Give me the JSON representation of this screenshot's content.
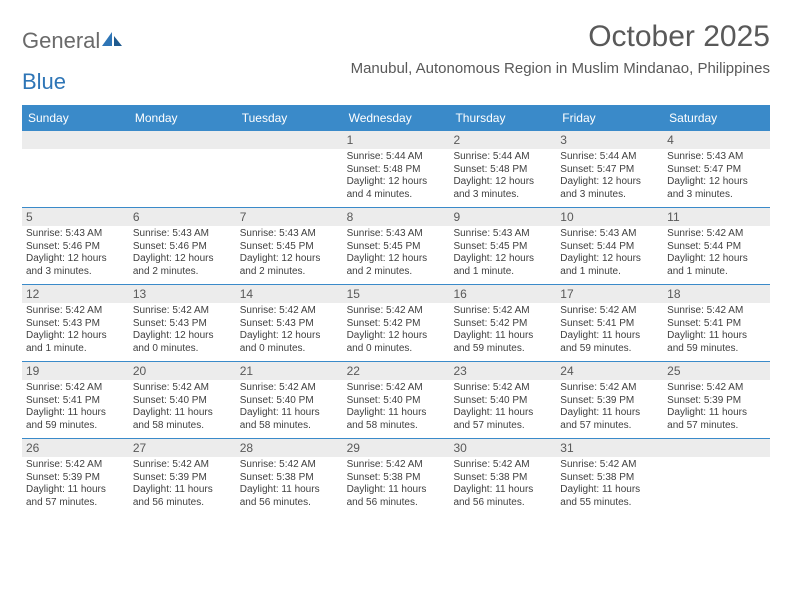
{
  "brand": {
    "part1": "General",
    "part2": "Blue"
  },
  "title": "October 2025",
  "location": "Manubul, Autonomous Region in Muslim Mindanao, Philippines",
  "colors": {
    "header_bg": "#3a8ac9",
    "header_text": "#ffffff",
    "daynum_bg": "#ececec",
    "text_muted": "#595959",
    "body_text": "#404040",
    "week_border": "#3a8ac9",
    "brand_gray": "#6a6a6a",
    "brand_blue": "#2e75b6",
    "page_bg": "#ffffff"
  },
  "typography": {
    "title_fontsize": 30,
    "location_fontsize": 15,
    "dayhead_fontsize": 12,
    "daynum_fontsize": 12,
    "body_fontsize": 10,
    "font_family": "Arial"
  },
  "day_headers": [
    "Sunday",
    "Monday",
    "Tuesday",
    "Wednesday",
    "Thursday",
    "Friday",
    "Saturday"
  ],
  "weeks": [
    [
      {
        "n": "",
        "sr": "",
        "ss": "",
        "dl1": "",
        "dl2": ""
      },
      {
        "n": "",
        "sr": "",
        "ss": "",
        "dl1": "",
        "dl2": ""
      },
      {
        "n": "",
        "sr": "",
        "ss": "",
        "dl1": "",
        "dl2": ""
      },
      {
        "n": "1",
        "sr": "Sunrise: 5:44 AM",
        "ss": "Sunset: 5:48 PM",
        "dl1": "Daylight: 12 hours",
        "dl2": "and 4 minutes."
      },
      {
        "n": "2",
        "sr": "Sunrise: 5:44 AM",
        "ss": "Sunset: 5:48 PM",
        "dl1": "Daylight: 12 hours",
        "dl2": "and 3 minutes."
      },
      {
        "n": "3",
        "sr": "Sunrise: 5:44 AM",
        "ss": "Sunset: 5:47 PM",
        "dl1": "Daylight: 12 hours",
        "dl2": "and 3 minutes."
      },
      {
        "n": "4",
        "sr": "Sunrise: 5:43 AM",
        "ss": "Sunset: 5:47 PM",
        "dl1": "Daylight: 12 hours",
        "dl2": "and 3 minutes."
      }
    ],
    [
      {
        "n": "5",
        "sr": "Sunrise: 5:43 AM",
        "ss": "Sunset: 5:46 PM",
        "dl1": "Daylight: 12 hours",
        "dl2": "and 3 minutes."
      },
      {
        "n": "6",
        "sr": "Sunrise: 5:43 AM",
        "ss": "Sunset: 5:46 PM",
        "dl1": "Daylight: 12 hours",
        "dl2": "and 2 minutes."
      },
      {
        "n": "7",
        "sr": "Sunrise: 5:43 AM",
        "ss": "Sunset: 5:45 PM",
        "dl1": "Daylight: 12 hours",
        "dl2": "and 2 minutes."
      },
      {
        "n": "8",
        "sr": "Sunrise: 5:43 AM",
        "ss": "Sunset: 5:45 PM",
        "dl1": "Daylight: 12 hours",
        "dl2": "and 2 minutes."
      },
      {
        "n": "9",
        "sr": "Sunrise: 5:43 AM",
        "ss": "Sunset: 5:45 PM",
        "dl1": "Daylight: 12 hours",
        "dl2": "and 1 minute."
      },
      {
        "n": "10",
        "sr": "Sunrise: 5:43 AM",
        "ss": "Sunset: 5:44 PM",
        "dl1": "Daylight: 12 hours",
        "dl2": "and 1 minute."
      },
      {
        "n": "11",
        "sr": "Sunrise: 5:42 AM",
        "ss": "Sunset: 5:44 PM",
        "dl1": "Daylight: 12 hours",
        "dl2": "and 1 minute."
      }
    ],
    [
      {
        "n": "12",
        "sr": "Sunrise: 5:42 AM",
        "ss": "Sunset: 5:43 PM",
        "dl1": "Daylight: 12 hours",
        "dl2": "and 1 minute."
      },
      {
        "n": "13",
        "sr": "Sunrise: 5:42 AM",
        "ss": "Sunset: 5:43 PM",
        "dl1": "Daylight: 12 hours",
        "dl2": "and 0 minutes."
      },
      {
        "n": "14",
        "sr": "Sunrise: 5:42 AM",
        "ss": "Sunset: 5:43 PM",
        "dl1": "Daylight: 12 hours",
        "dl2": "and 0 minutes."
      },
      {
        "n": "15",
        "sr": "Sunrise: 5:42 AM",
        "ss": "Sunset: 5:42 PM",
        "dl1": "Daylight: 12 hours",
        "dl2": "and 0 minutes."
      },
      {
        "n": "16",
        "sr": "Sunrise: 5:42 AM",
        "ss": "Sunset: 5:42 PM",
        "dl1": "Daylight: 11 hours",
        "dl2": "and 59 minutes."
      },
      {
        "n": "17",
        "sr": "Sunrise: 5:42 AM",
        "ss": "Sunset: 5:41 PM",
        "dl1": "Daylight: 11 hours",
        "dl2": "and 59 minutes."
      },
      {
        "n": "18",
        "sr": "Sunrise: 5:42 AM",
        "ss": "Sunset: 5:41 PM",
        "dl1": "Daylight: 11 hours",
        "dl2": "and 59 minutes."
      }
    ],
    [
      {
        "n": "19",
        "sr": "Sunrise: 5:42 AM",
        "ss": "Sunset: 5:41 PM",
        "dl1": "Daylight: 11 hours",
        "dl2": "and 59 minutes."
      },
      {
        "n": "20",
        "sr": "Sunrise: 5:42 AM",
        "ss": "Sunset: 5:40 PM",
        "dl1": "Daylight: 11 hours",
        "dl2": "and 58 minutes."
      },
      {
        "n": "21",
        "sr": "Sunrise: 5:42 AM",
        "ss": "Sunset: 5:40 PM",
        "dl1": "Daylight: 11 hours",
        "dl2": "and 58 minutes."
      },
      {
        "n": "22",
        "sr": "Sunrise: 5:42 AM",
        "ss": "Sunset: 5:40 PM",
        "dl1": "Daylight: 11 hours",
        "dl2": "and 58 minutes."
      },
      {
        "n": "23",
        "sr": "Sunrise: 5:42 AM",
        "ss": "Sunset: 5:40 PM",
        "dl1": "Daylight: 11 hours",
        "dl2": "and 57 minutes."
      },
      {
        "n": "24",
        "sr": "Sunrise: 5:42 AM",
        "ss": "Sunset: 5:39 PM",
        "dl1": "Daylight: 11 hours",
        "dl2": "and 57 minutes."
      },
      {
        "n": "25",
        "sr": "Sunrise: 5:42 AM",
        "ss": "Sunset: 5:39 PM",
        "dl1": "Daylight: 11 hours",
        "dl2": "and 57 minutes."
      }
    ],
    [
      {
        "n": "26",
        "sr": "Sunrise: 5:42 AM",
        "ss": "Sunset: 5:39 PM",
        "dl1": "Daylight: 11 hours",
        "dl2": "and 57 minutes."
      },
      {
        "n": "27",
        "sr": "Sunrise: 5:42 AM",
        "ss": "Sunset: 5:39 PM",
        "dl1": "Daylight: 11 hours",
        "dl2": "and 56 minutes."
      },
      {
        "n": "28",
        "sr": "Sunrise: 5:42 AM",
        "ss": "Sunset: 5:38 PM",
        "dl1": "Daylight: 11 hours",
        "dl2": "and 56 minutes."
      },
      {
        "n": "29",
        "sr": "Sunrise: 5:42 AM",
        "ss": "Sunset: 5:38 PM",
        "dl1": "Daylight: 11 hours",
        "dl2": "and 56 minutes."
      },
      {
        "n": "30",
        "sr": "Sunrise: 5:42 AM",
        "ss": "Sunset: 5:38 PM",
        "dl1": "Daylight: 11 hours",
        "dl2": "and 56 minutes."
      },
      {
        "n": "31",
        "sr": "Sunrise: 5:42 AM",
        "ss": "Sunset: 5:38 PM",
        "dl1": "Daylight: 11 hours",
        "dl2": "and 55 minutes."
      },
      {
        "n": "",
        "sr": "",
        "ss": "",
        "dl1": "",
        "dl2": ""
      }
    ]
  ]
}
